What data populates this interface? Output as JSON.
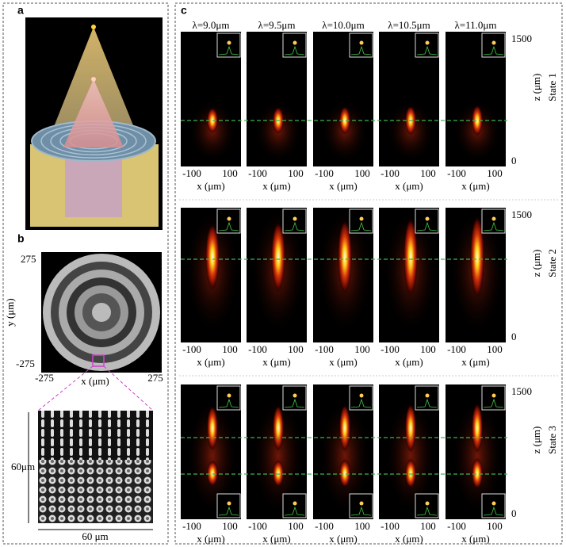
{
  "panels": {
    "a": {
      "label": "a"
    },
    "b": {
      "label": "b",
      "y_ticks": [
        "275",
        "-275"
      ],
      "y_label": "y (μm)",
      "x_ticks": [
        "-275",
        "275"
      ],
      "x_label": "x (μm)",
      "zoom_height": "60μm",
      "zoom_width": "60 μm"
    },
    "c": {
      "label": "c",
      "wavelengths": [
        "λ=9.0μm",
        "λ=9.5μm",
        "λ=10.0μm",
        "λ=10.5μm",
        "λ=11.0μm"
      ],
      "rows": [
        {
          "state": "State 1",
          "z_ticks": [
            "1500",
            "0"
          ],
          "z_label": "z (μm)",
          "x_ticks": [
            "-100",
            "100"
          ],
          "x_label": "x (μm)"
        },
        {
          "state": "State 2",
          "z_ticks": [
            "1500",
            "0"
          ],
          "z_label": "z (μm)",
          "x_ticks": [
            "-100",
            "100"
          ],
          "x_label": "x (μm)"
        },
        {
          "state": "State 3",
          "z_ticks": [
            "1500",
            "0"
          ],
          "z_label": "z (μm)",
          "x_ticks": [
            "-100",
            "100"
          ],
          "x_label": "x (μm)"
        }
      ]
    }
  }
}
